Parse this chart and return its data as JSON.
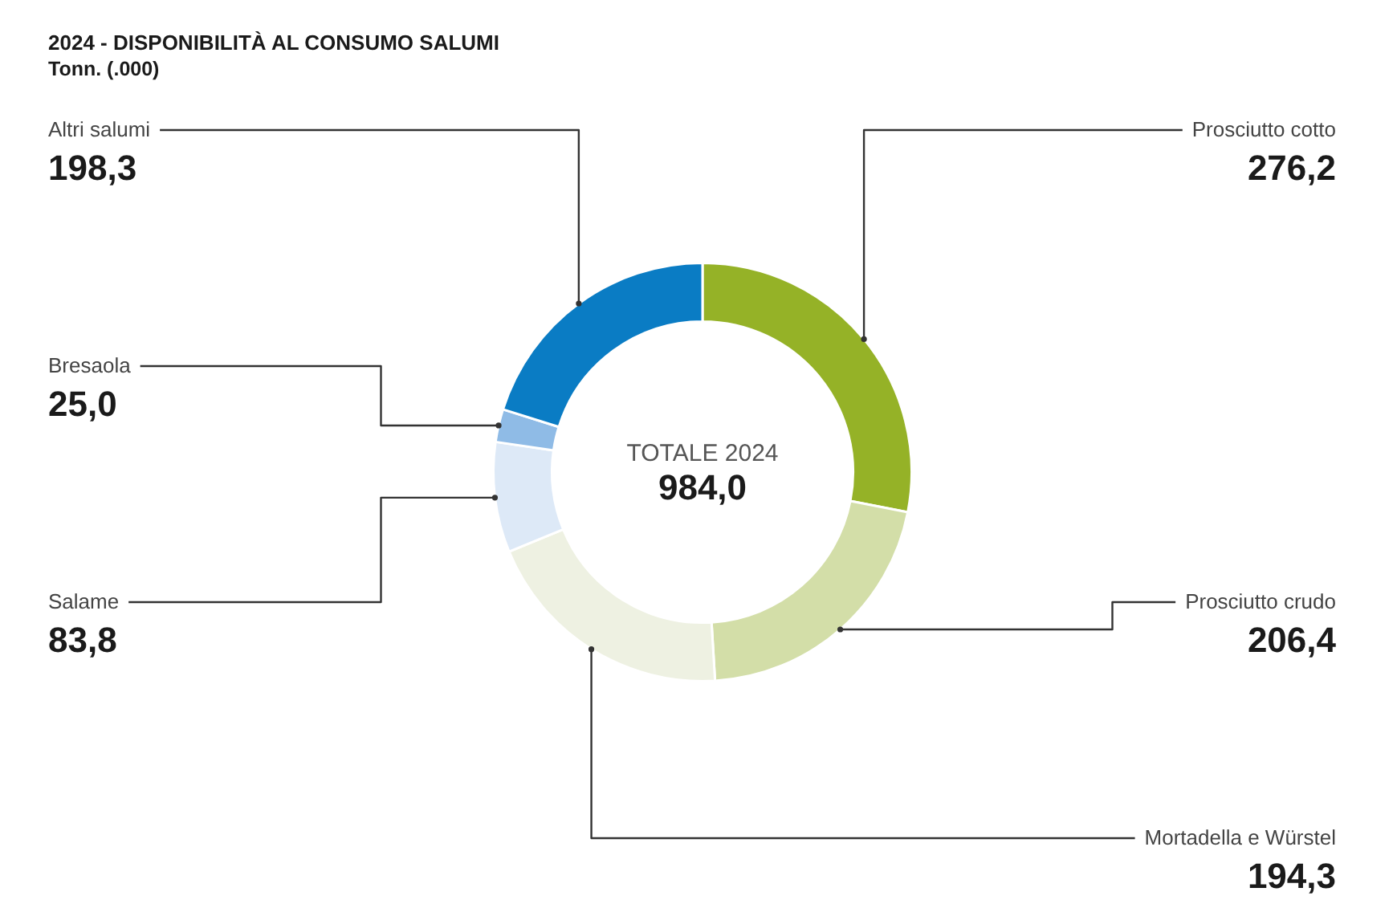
{
  "chart_data": {
    "type": "donut",
    "title": "2024 - DISPONIBILITÀ AL CONSUMO SALUMI",
    "subtitle": "Tonn. (.000)",
    "categories": [
      "Prosciutto cotto",
      "Prosciutto crudo",
      "Mortadella e Würstel",
      "Salame",
      "Bresaola",
      "Altri salumi"
    ],
    "values": [
      276.2,
      206.4,
      194.3,
      83.8,
      25.0,
      198.3
    ],
    "colors": [
      "#95b227",
      "#d3dea8",
      "#eef1e2",
      "#dde9f7",
      "#8fbbe6",
      "#0a7cc4"
    ],
    "value_labels": [
      "276,2",
      "206,4",
      "194,3",
      "83,8",
      "25,0",
      "198,3"
    ],
    "annotations": [
      "TOTALE 2024",
      "984,0"
    ],
    "legend": false
  }
}
